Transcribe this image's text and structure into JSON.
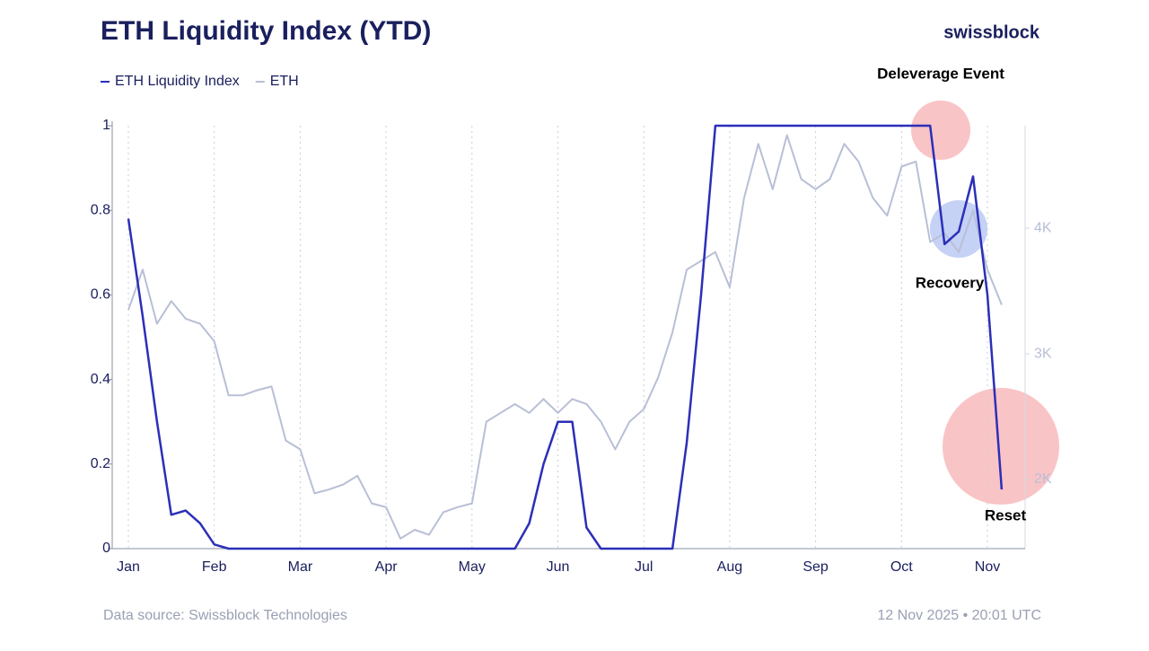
{
  "chart_data": {
    "type": "line",
    "title": "ETH Liquidity Index (YTD)",
    "brand": "swissblock",
    "source": "Data source: Swissblock Technologies",
    "timestamp": "12 Nov 2025 • 20:01 UTC",
    "categories": [
      "Jan",
      null,
      null,
      null,
      null,
      null,
      "Feb",
      null,
      null,
      null,
      null,
      null,
      "Mar",
      null,
      null,
      null,
      null,
      null,
      "Apr",
      null,
      null,
      null,
      null,
      null,
      "May",
      null,
      null,
      null,
      null,
      null,
      "Jun",
      null,
      null,
      null,
      null,
      null,
      "Jul",
      null,
      null,
      null,
      null,
      null,
      "Aug",
      null,
      null,
      null,
      null,
      null,
      "Sep",
      null,
      null,
      null,
      null,
      null,
      "Oct",
      null,
      null,
      null,
      null,
      null,
      "Nov",
      null
    ],
    "series": [
      {
        "name": "ETH Liquidity Index",
        "color": "#2b2fb8",
        "values": [
          0.78,
          0.55,
          0.3,
          0.08,
          0.09,
          0.06,
          0.01,
          0,
          0,
          0,
          0,
          0,
          0,
          0,
          0,
          0,
          0,
          0,
          0,
          0,
          0,
          0,
          0,
          0,
          0,
          0,
          0,
          0,
          0.06,
          0.2,
          0.3,
          0.3,
          0.05,
          0,
          0,
          0,
          0,
          0,
          0,
          0.25,
          0.6,
          1,
          1,
          1,
          1,
          1,
          1,
          1,
          1,
          1,
          1,
          1,
          1,
          1,
          1,
          1,
          1,
          0.72,
          0.75,
          0.88,
          0.6,
          0.14
        ]
      },
      {
        "name": "ETH",
        "color": "#b8bfd6",
        "axis": "y2",
        "values": [
          3350,
          3670,
          3240,
          3420,
          3280,
          3240,
          3100,
          2670,
          2670,
          2710,
          2740,
          2310,
          2240,
          1890,
          1920,
          1960,
          2030,
          1810,
          1780,
          1530,
          1600,
          1560,
          1740,
          1780,
          1810,
          2460,
          2530,
          2600,
          2530,
          2640,
          2530,
          2640,
          2600,
          2460,
          2240,
          2460,
          2560,
          2810,
          3170,
          3670,
          3740,
          3810,
          3530,
          4240,
          4670,
          4310,
          4740,
          4390,
          4310,
          4390,
          4670,
          4530,
          4240,
          4100,
          4490,
          4530,
          3890,
          3960,
          3810,
          4140,
          3670,
          3390
        ]
      }
    ],
    "ylim": [
      0,
      1
    ],
    "yticks": [
      0,
      0.2,
      0.4,
      0.6,
      0.8,
      1
    ],
    "y2lim": [
      1450,
      4815
    ],
    "y2ticks": [
      {
        "value": 2000,
        "label": "2K"
      },
      {
        "value": 3000,
        "label": "3K"
      },
      {
        "value": 4000,
        "label": "4K"
      }
    ],
    "annotations": [
      "Deleverage Event",
      "Recovery",
      "Reset"
    ],
    "grid": true,
    "legend": "top-left"
  }
}
